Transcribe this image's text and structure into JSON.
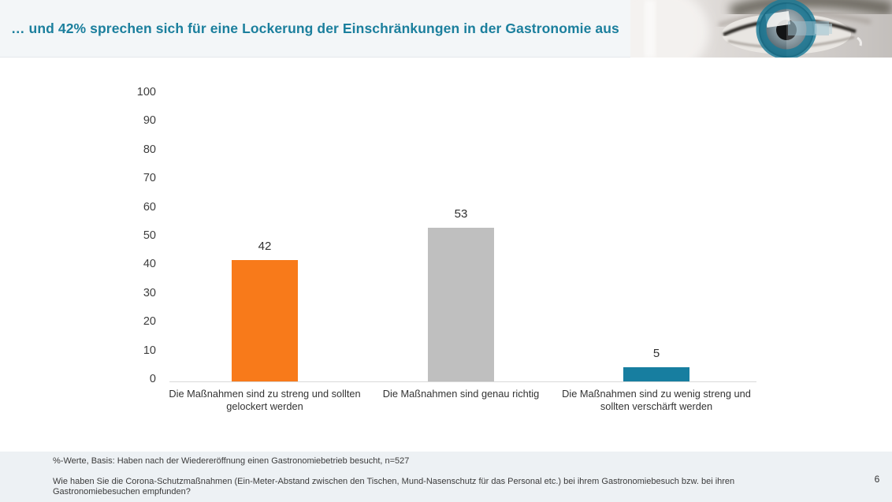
{
  "header": {
    "title": "… und 42% sprechen sich für eine Lockerung der Einschränkungen in der Gastronomie aus",
    "logo": "eye-photo-with-teal-g-ring-logo",
    "accent_color": "#1b7f9d"
  },
  "chart_data": {
    "type": "bar",
    "title": "",
    "categories": [
      "Die Maßnahmen sind zu streng und sollten gelockert werden",
      "Die Maßnahmen sind genau richtig",
      "Die Maßnahmen sind zu wenig streng und sollten verschärft werden"
    ],
    "values": [
      42,
      53,
      5
    ],
    "colors": [
      "#F87A1A",
      "#BFBFBF",
      "#177EA0"
    ],
    "value_labels": [
      "42",
      "53",
      "5"
    ],
    "xlabel": "",
    "ylabel": "",
    "ylim": [
      0,
      100
    ],
    "yticks": [
      0,
      10,
      20,
      30,
      40,
      50,
      60,
      70,
      80,
      90,
      100
    ],
    "grid": false,
    "legend": false
  },
  "footer": {
    "basis_note": "%-Werte, Basis: Haben nach der Wiedereröffnung einen Gastronomiebetrieb besucht, n=527",
    "question_note": "Wie haben Sie die Corona-Schutzmaßnahmen (Ein-Meter-Abstand zwischen den Tischen, Mund-Nasenschutz für das Personal etc.) bei ihrem Gastronomiebesuch bzw. bei ihren Gastronomiebesuchen empfunden?",
    "page_number": "6"
  }
}
